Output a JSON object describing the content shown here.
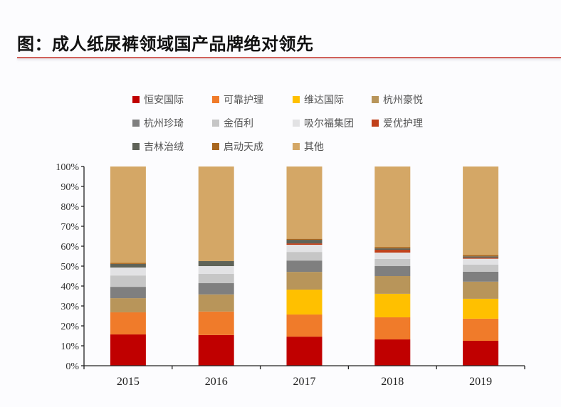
{
  "title": "图：成人纸尿裤领域国产品牌绝对领先",
  "chart_data": {
    "type": "bar",
    "stacked": true,
    "title": "",
    "xlabel": "",
    "ylabel": "",
    "ylim": [
      0,
      100
    ],
    "y_ticks": [
      "0%",
      "10%",
      "20%",
      "30%",
      "40%",
      "50%",
      "60%",
      "70%",
      "80%",
      "90%",
      "100%"
    ],
    "categories": [
      "2015",
      "2016",
      "2017",
      "2018",
      "2019"
    ],
    "legend_position": "top",
    "series": [
      {
        "name": "恒安国际",
        "color": "#C00000",
        "values": [
          15.7,
          15.4,
          14.6,
          13.2,
          12.5
        ]
      },
      {
        "name": "可靠护理",
        "color": "#F07B2A",
        "values": [
          11.1,
          11.8,
          11.1,
          11.1,
          11.1
        ]
      },
      {
        "name": "维达国际",
        "color": "#FFC000",
        "values": [
          0,
          0,
          12.5,
          11.8,
          10.0
        ]
      },
      {
        "name": "杭州豪悦",
        "color": "#B8955A",
        "values": [
          7.1,
          8.6,
          8.9,
          8.9,
          8.6
        ]
      },
      {
        "name": "杭州珍琦",
        "color": "#7F7F7F",
        "values": [
          5.7,
          5.7,
          5.7,
          5.0,
          5.0
        ]
      },
      {
        "name": "金佰利",
        "color": "#C6C6C6",
        "values": [
          5.7,
          4.6,
          4.3,
          3.6,
          3.6
        ]
      },
      {
        "name": "吸尔福集团",
        "color": "#E2E2E4",
        "values": [
          4.0,
          3.9,
          3.6,
          3.2,
          2.9
        ]
      },
      {
        "name": "爱优护理",
        "color": "#C0401A",
        "values": [
          0,
          0,
          0.7,
          1.4,
          0.5
        ]
      },
      {
        "name": "吉林治绒",
        "color": "#5F6358",
        "values": [
          1.8,
          2.5,
          1.8,
          0.7,
          0.7
        ]
      },
      {
        "name": "启动天成",
        "color": "#A8661E",
        "values": [
          0.5,
          0,
          0.5,
          0.7,
          0.7
        ]
      },
      {
        "name": "其他",
        "color": "#D4A766",
        "values": [
          48.4,
          47.5,
          36.3,
          40.4,
          44.4
        ]
      }
    ]
  }
}
